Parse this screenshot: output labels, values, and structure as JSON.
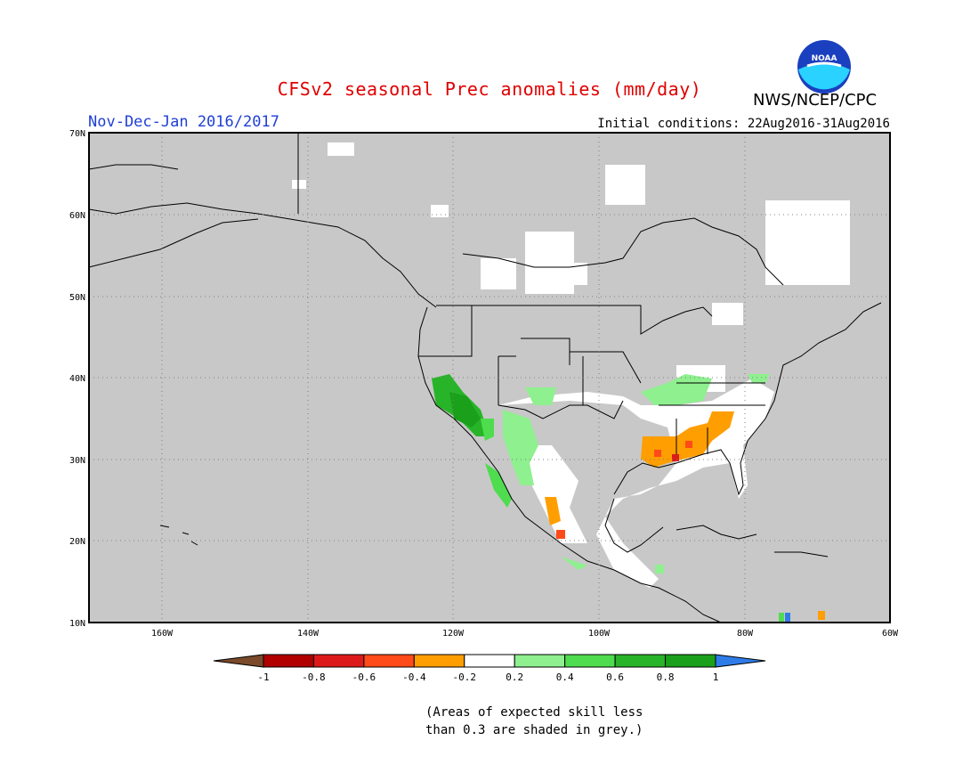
{
  "title": "CFSv2 seasonal Prec anomalies (mm/day)",
  "agency": "NWS/NCEP/CPC",
  "season": "Nov-Dec-Jan 2016/2017",
  "initial_conditions": "Initial conditions: 22Aug2016-31Aug2016",
  "logo_text": "NOAA",
  "note_line1": "(Areas of expected skill less",
  "note_line2": "than 0.3 are shaded in grey.)",
  "lat_ticks": [
    "70N",
    "60N",
    "50N",
    "40N",
    "30N",
    "20N",
    "10N"
  ],
  "lon_ticks": [
    "160W",
    "140W",
    "120W",
    "100W",
    "80W",
    "60W"
  ],
  "colorbar": {
    "labels": [
      "-1",
      "-0.8",
      "-0.6",
      "-0.4",
      "-0.2",
      "0.2",
      "0.4",
      "0.6",
      "0.8",
      "1"
    ],
    "colors": [
      "#7a4a2a",
      "#b00000",
      "#dd1a1a",
      "#ff4a1a",
      "#ff9e00",
      "#ffffff",
      "#8ef08e",
      "#4fdc4f",
      "#28b428",
      "#1aa01a",
      "#2f7ce8"
    ]
  },
  "colors": {
    "grey_mask": "#c8c8c8",
    "title_red": "#e00000",
    "season_blue": "#1f3fd6"
  },
  "map_extent": {
    "lon": [
      -170,
      -60
    ],
    "lat": [
      10,
      70
    ]
  }
}
